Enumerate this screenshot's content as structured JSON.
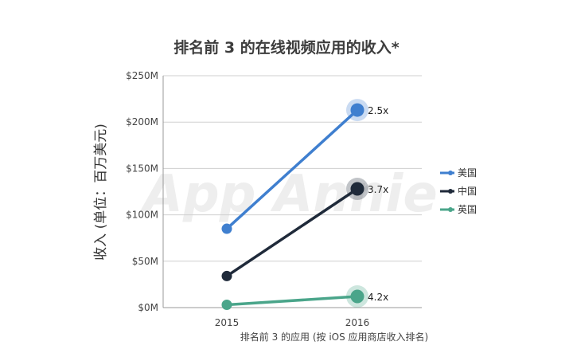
{
  "chart_data": {
    "type": "line",
    "title": "排名前 3 的在线视频应用的收入*",
    "ylabel": "收入 (单位：百万美元)",
    "xlabel": "排名前 3 的应用 (按 iOS 应用商店收入排名)",
    "categories": [
      "2015",
      "2016"
    ],
    "y_ticks": [
      "$0M",
      "$50M",
      "$100M",
      "$150M",
      "$200M",
      "$250M"
    ],
    "ylim": [
      0,
      250
    ],
    "grid": true,
    "legend_position": "right",
    "watermark": "App Annie",
    "series": [
      {
        "name": "美国",
        "values": [
          85,
          213
        ],
        "color": "#3f7fcf",
        "growth_label": "2.5x"
      },
      {
        "name": "中国",
        "values": [
          34,
          128
        ],
        "color": "#1f2a3a",
        "growth_label": "3.7x"
      },
      {
        "name": "英国",
        "values": [
          3,
          12
        ],
        "color": "#4aa58a",
        "growth_label": "4.2x"
      }
    ]
  }
}
